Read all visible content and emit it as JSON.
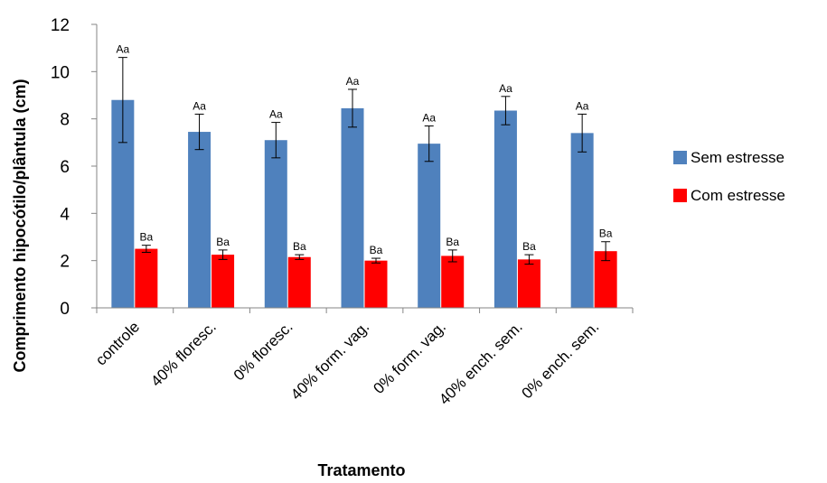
{
  "chart_data": {
    "type": "bar",
    "xlabel": "Tratamento",
    "ylabel": "Comprimento  hipocótilo/plântula (cm)",
    "ylim": [
      0,
      12
    ],
    "yticks": [
      0,
      2,
      4,
      6,
      8,
      10,
      12
    ],
    "grid": false,
    "legend_position": "right",
    "categories": [
      "controle",
      "40% floresc.",
      "0% floresc.",
      "40% form. vag.",
      "0% form. vag.",
      "40% ench. sem.",
      "0% ench. sem."
    ],
    "series": [
      {
        "name": "Sem estresse",
        "color": "#4f81bd",
        "values": [
          8.8,
          7.45,
          7.1,
          8.45,
          6.95,
          8.35,
          7.4
        ],
        "errors": [
          1.8,
          0.75,
          0.75,
          0.8,
          0.75,
          0.6,
          0.8
        ],
        "labels": [
          "Aa",
          "Aa",
          "Aa",
          "Aa",
          "Aa",
          "Aa",
          "Aa"
        ]
      },
      {
        "name": "Com estresse",
        "color": "#ff0000",
        "values": [
          2.5,
          2.25,
          2.15,
          2.0,
          2.2,
          2.05,
          2.4
        ],
        "errors": [
          0.15,
          0.2,
          0.1,
          0.1,
          0.25,
          0.2,
          0.4
        ],
        "labels": [
          "Ba",
          "Ba",
          "Ba",
          "Ba",
          "Ba",
          "Ba",
          "Ba"
        ]
      }
    ]
  }
}
